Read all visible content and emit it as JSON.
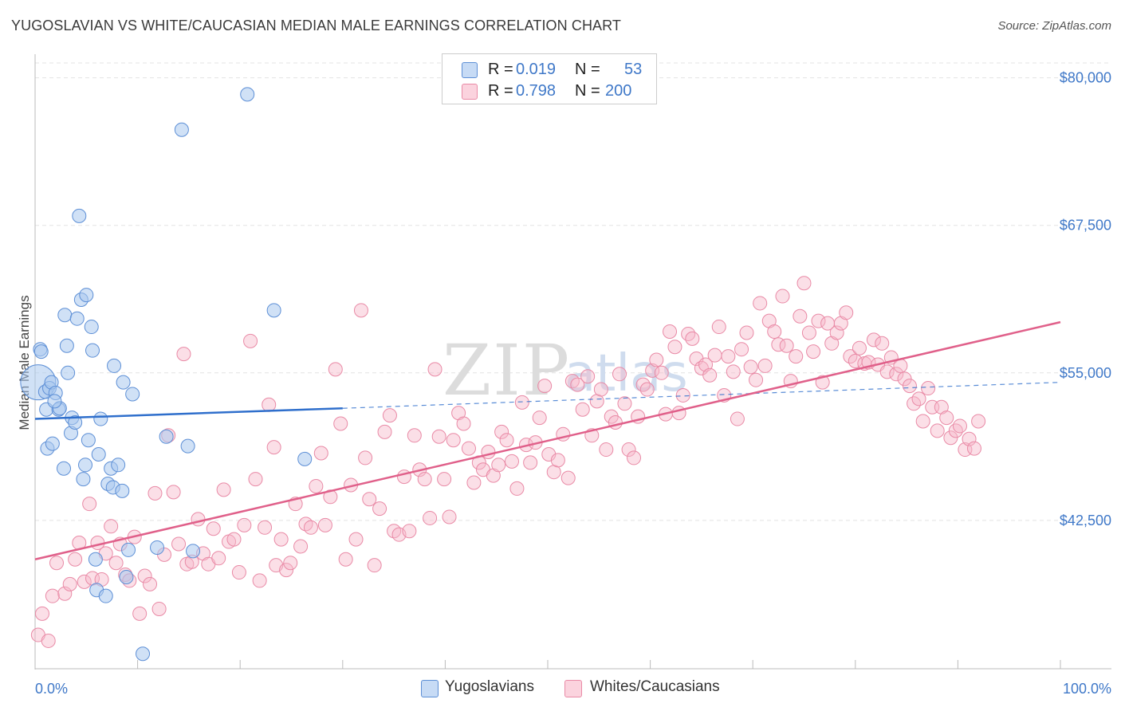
{
  "title": "YUGOSLAVIAN VS WHITE/CAUCASIAN MEDIAN MALE EARNINGS CORRELATION CHART",
  "source": "Source: ZipAtlas.com",
  "watermark": {
    "zip": "ZIP",
    "atlas": "atlas"
  },
  "legend": {
    "rows": [
      {
        "r_label": "R =",
        "r_value": "0.019",
        "n_label": "N =",
        "n_value": "53",
        "color": "#a9c8ef"
      },
      {
        "r_label": "R =",
        "r_value": "0.798",
        "n_label": "N =",
        "n_value": "200",
        "color": "#f6b8c9"
      }
    ]
  },
  "bottom_legend": {
    "series1": "Yugoslavians",
    "series2": "Whites/Caucasians"
  },
  "chart_data": {
    "type": "scatter",
    "title": "YUGOSLAVIAN VS WHITE/CAUCASIAN MEDIAN MALE EARNINGS CORRELATION CHART",
    "xlabel": "",
    "ylabel": "Median Male Earnings",
    "xlim": [
      0,
      100
    ],
    "ylim": [
      30000,
      82000
    ],
    "x_tick_labels": [
      "0.0%",
      "100.0%"
    ],
    "y_ticks": [
      42500,
      55000,
      67500,
      80000
    ],
    "y_tick_labels": [
      "$42,500",
      "$55,000",
      "$67,500",
      "$80,000"
    ],
    "colors": {
      "series1": "#a9c8ef",
      "series1_edge": "#5d8fd6",
      "series1_line": "#2f6fcc",
      "series2": "#f6b8c9",
      "series2_edge": "#e98aa6",
      "series2_line": "#e0608a"
    },
    "series": [
      {
        "name": "Yugoslavians",
        "r": 0.019,
        "n": 53,
        "trend": {
          "x0": 0,
          "y0": 51100,
          "x1": 30,
          "y1": 52000,
          "x_dash_end": 100,
          "y_dash_end": 54200
        },
        "points": [
          [
            0.3,
            54200
          ],
          [
            0.5,
            57000
          ],
          [
            0.6,
            56800
          ],
          [
            1.0,
            53400
          ],
          [
            1.1,
            51900
          ],
          [
            1.2,
            48600
          ],
          [
            1.4,
            53700
          ],
          [
            1.6,
            54200
          ],
          [
            1.7,
            49000
          ],
          [
            2.0,
            53300
          ],
          [
            2.3,
            51900
          ],
          [
            2.4,
            52000
          ],
          [
            2.8,
            46900
          ],
          [
            2.9,
            59900
          ],
          [
            3.1,
            57300
          ],
          [
            3.2,
            55000
          ],
          [
            3.5,
            49900
          ],
          [
            3.6,
            51200
          ],
          [
            3.9,
            50800
          ],
          [
            4.1,
            59600
          ],
          [
            4.3,
            68300
          ],
          [
            4.5,
            61200
          ],
          [
            4.7,
            46000
          ],
          [
            4.9,
            47200
          ],
          [
            5.0,
            61600
          ],
          [
            5.2,
            49300
          ],
          [
            5.5,
            58900
          ],
          [
            5.6,
            56900
          ],
          [
            5.9,
            39200
          ],
          [
            6.0,
            36600
          ],
          [
            6.2,
            48100
          ],
          [
            6.4,
            51100
          ],
          [
            6.9,
            36100
          ],
          [
            7.1,
            45600
          ],
          [
            7.4,
            46900
          ],
          [
            7.6,
            45300
          ],
          [
            7.7,
            55600
          ],
          [
            8.1,
            47200
          ],
          [
            8.5,
            45000
          ],
          [
            8.6,
            54200
          ],
          [
            8.9,
            37700
          ],
          [
            9.1,
            40000
          ],
          [
            9.5,
            53200
          ],
          [
            10.5,
            31200
          ],
          [
            11.9,
            40200
          ],
          [
            12.8,
            49600
          ],
          [
            14.3,
            75600
          ],
          [
            14.9,
            48800
          ],
          [
            15.4,
            39900
          ],
          [
            20.7,
            78600
          ],
          [
            23.3,
            60300
          ],
          [
            26.3,
            47700
          ],
          [
            1.9,
            52600
          ]
        ]
      },
      {
        "name": "Whites/Caucasians",
        "r": 0.798,
        "n": 200,
        "trend": {
          "x0": 0,
          "y0": 39200,
          "x1": 100,
          "y1": 59300
        },
        "points": [
          [
            0.3,
            32800
          ],
          [
            0.7,
            34600
          ],
          [
            1.3,
            32300
          ],
          [
            1.7,
            36100
          ],
          [
            2.1,
            38900
          ],
          [
            2.9,
            36300
          ],
          [
            3.4,
            37100
          ],
          [
            3.9,
            39200
          ],
          [
            4.3,
            40600
          ],
          [
            4.8,
            37300
          ],
          [
            5.3,
            43900
          ],
          [
            5.6,
            37600
          ],
          [
            6.1,
            40600
          ],
          [
            6.5,
            37500
          ],
          [
            6.9,
            39700
          ],
          [
            7.4,
            42000
          ],
          [
            7.9,
            38900
          ],
          [
            8.3,
            40500
          ],
          [
            8.8,
            37900
          ],
          [
            9.2,
            37400
          ],
          [
            9.7,
            41100
          ],
          [
            10.2,
            34600
          ],
          [
            10.7,
            37800
          ],
          [
            11.2,
            37100
          ],
          [
            11.7,
            44800
          ],
          [
            12.1,
            35000
          ],
          [
            12.6,
            39600
          ],
          [
            13.0,
            49700
          ],
          [
            13.5,
            44900
          ],
          [
            14.0,
            40500
          ],
          [
            14.5,
            56600
          ],
          [
            14.8,
            38800
          ],
          [
            15.3,
            39000
          ],
          [
            15.9,
            42600
          ],
          [
            16.4,
            39700
          ],
          [
            16.9,
            38800
          ],
          [
            17.4,
            41800
          ],
          [
            17.9,
            39300
          ],
          [
            18.4,
            45100
          ],
          [
            18.9,
            40700
          ],
          [
            19.4,
            40900
          ],
          [
            19.9,
            38100
          ],
          [
            20.4,
            42100
          ],
          [
            21.0,
            57700
          ],
          [
            21.5,
            46000
          ],
          [
            21.9,
            37400
          ],
          [
            22.4,
            41900
          ],
          [
            22.8,
            52300
          ],
          [
            23.3,
            48700
          ],
          [
            23.5,
            38700
          ],
          [
            24.0,
            40900
          ],
          [
            24.5,
            38300
          ],
          [
            24.9,
            38900
          ],
          [
            25.4,
            43900
          ],
          [
            25.9,
            40300
          ],
          [
            26.4,
            42200
          ],
          [
            26.9,
            41900
          ],
          [
            27.4,
            45400
          ],
          [
            27.9,
            48200
          ],
          [
            28.3,
            42100
          ],
          [
            28.8,
            44500
          ],
          [
            29.3,
            55300
          ],
          [
            29.8,
            50700
          ],
          [
            30.3,
            39200
          ],
          [
            30.8,
            45500
          ],
          [
            31.3,
            40900
          ],
          [
            31.8,
            60300
          ],
          [
            32.2,
            47800
          ],
          [
            32.6,
            44300
          ],
          [
            33.1,
            38700
          ],
          [
            33.6,
            43500
          ],
          [
            34.1,
            50000
          ],
          [
            34.6,
            51400
          ],
          [
            35.0,
            41600
          ],
          [
            35.5,
            41300
          ],
          [
            36.0,
            46200
          ],
          [
            36.5,
            41600
          ],
          [
            37.0,
            49700
          ],
          [
            37.5,
            46800
          ],
          [
            38.0,
            46000
          ],
          [
            38.5,
            42700
          ],
          [
            39.0,
            55300
          ],
          [
            39.4,
            49600
          ],
          [
            39.9,
            46000
          ],
          [
            40.4,
            42800
          ],
          [
            40.8,
            49300
          ],
          [
            41.3,
            51600
          ],
          [
            41.8,
            50700
          ],
          [
            42.3,
            48600
          ],
          [
            42.8,
            45700
          ],
          [
            43.3,
            47400
          ],
          [
            43.7,
            46800
          ],
          [
            44.2,
            48300
          ],
          [
            44.7,
            46300
          ],
          [
            45.2,
            47200
          ],
          [
            45.5,
            50000
          ],
          [
            46.0,
            49300
          ],
          [
            46.5,
            47500
          ],
          [
            47.0,
            45200
          ],
          [
            47.5,
            52500
          ],
          [
            47.9,
            48900
          ],
          [
            48.3,
            47400
          ],
          [
            48.8,
            49100
          ],
          [
            49.2,
            51200
          ],
          [
            49.7,
            53900
          ],
          [
            50.1,
            48100
          ],
          [
            50.6,
            46600
          ],
          [
            51.0,
            47600
          ],
          [
            51.5,
            49800
          ],
          [
            52.0,
            46100
          ],
          [
            52.4,
            54300
          ],
          [
            52.9,
            54000
          ],
          [
            53.4,
            51900
          ],
          [
            53.9,
            54700
          ],
          [
            54.3,
            49700
          ],
          [
            54.8,
            52600
          ],
          [
            55.2,
            53600
          ],
          [
            55.7,
            48500
          ],
          [
            56.2,
            51300
          ],
          [
            56.6,
            50800
          ],
          [
            57.0,
            54900
          ],
          [
            57.5,
            52400
          ],
          [
            57.9,
            48500
          ],
          [
            58.4,
            47800
          ],
          [
            58.8,
            51300
          ],
          [
            59.3,
            54000
          ],
          [
            59.7,
            53600
          ],
          [
            60.2,
            55200
          ],
          [
            60.6,
            56100
          ],
          [
            61.1,
            55000
          ],
          [
            61.5,
            51500
          ],
          [
            61.9,
            58500
          ],
          [
            62.4,
            57200
          ],
          [
            62.8,
            51600
          ],
          [
            63.2,
            53100
          ],
          [
            63.7,
            58300
          ],
          [
            64.1,
            57900
          ],
          [
            64.5,
            56200
          ],
          [
            65.0,
            55400
          ],
          [
            65.4,
            55700
          ],
          [
            65.8,
            54800
          ],
          [
            66.3,
            56500
          ],
          [
            66.7,
            58900
          ],
          [
            67.2,
            53100
          ],
          [
            67.6,
            56400
          ],
          [
            68.1,
            55100
          ],
          [
            68.5,
            51100
          ],
          [
            68.9,
            57000
          ],
          [
            69.4,
            58400
          ],
          [
            69.8,
            55500
          ],
          [
            70.3,
            54400
          ],
          [
            70.7,
            60900
          ],
          [
            71.2,
            55600
          ],
          [
            71.6,
            59400
          ],
          [
            72.1,
            58500
          ],
          [
            72.5,
            57400
          ],
          [
            72.9,
            61500
          ],
          [
            73.3,
            57300
          ],
          [
            73.7,
            54300
          ],
          [
            74.2,
            56400
          ],
          [
            74.6,
            59800
          ],
          [
            75.0,
            62600
          ],
          [
            75.5,
            58400
          ],
          [
            75.9,
            56800
          ],
          [
            76.4,
            59400
          ],
          [
            76.8,
            54200
          ],
          [
            77.3,
            59200
          ],
          [
            77.7,
            57500
          ],
          [
            78.2,
            58400
          ],
          [
            78.6,
            59200
          ],
          [
            79.1,
            60100
          ],
          [
            79.5,
            56400
          ],
          [
            80.0,
            56000
          ],
          [
            80.4,
            57100
          ],
          [
            80.9,
            55800
          ],
          [
            81.3,
            55900
          ],
          [
            81.8,
            57800
          ],
          [
            82.2,
            55700
          ],
          [
            82.6,
            57500
          ],
          [
            83.1,
            55100
          ],
          [
            83.5,
            56300
          ],
          [
            84.0,
            54900
          ],
          [
            84.4,
            55600
          ],
          [
            84.8,
            54500
          ],
          [
            85.3,
            53900
          ],
          [
            85.7,
            52400
          ],
          [
            86.2,
            52800
          ],
          [
            86.6,
            50900
          ],
          [
            87.1,
            53700
          ],
          [
            87.5,
            52100
          ],
          [
            88.0,
            50100
          ],
          [
            88.4,
            52100
          ],
          [
            88.9,
            51200
          ],
          [
            89.3,
            49500
          ],
          [
            89.8,
            50100
          ],
          [
            90.2,
            50500
          ],
          [
            90.7,
            48500
          ],
          [
            91.1,
            49400
          ],
          [
            91.6,
            48600
          ],
          [
            92.0,
            50900
          ]
        ]
      }
    ]
  }
}
